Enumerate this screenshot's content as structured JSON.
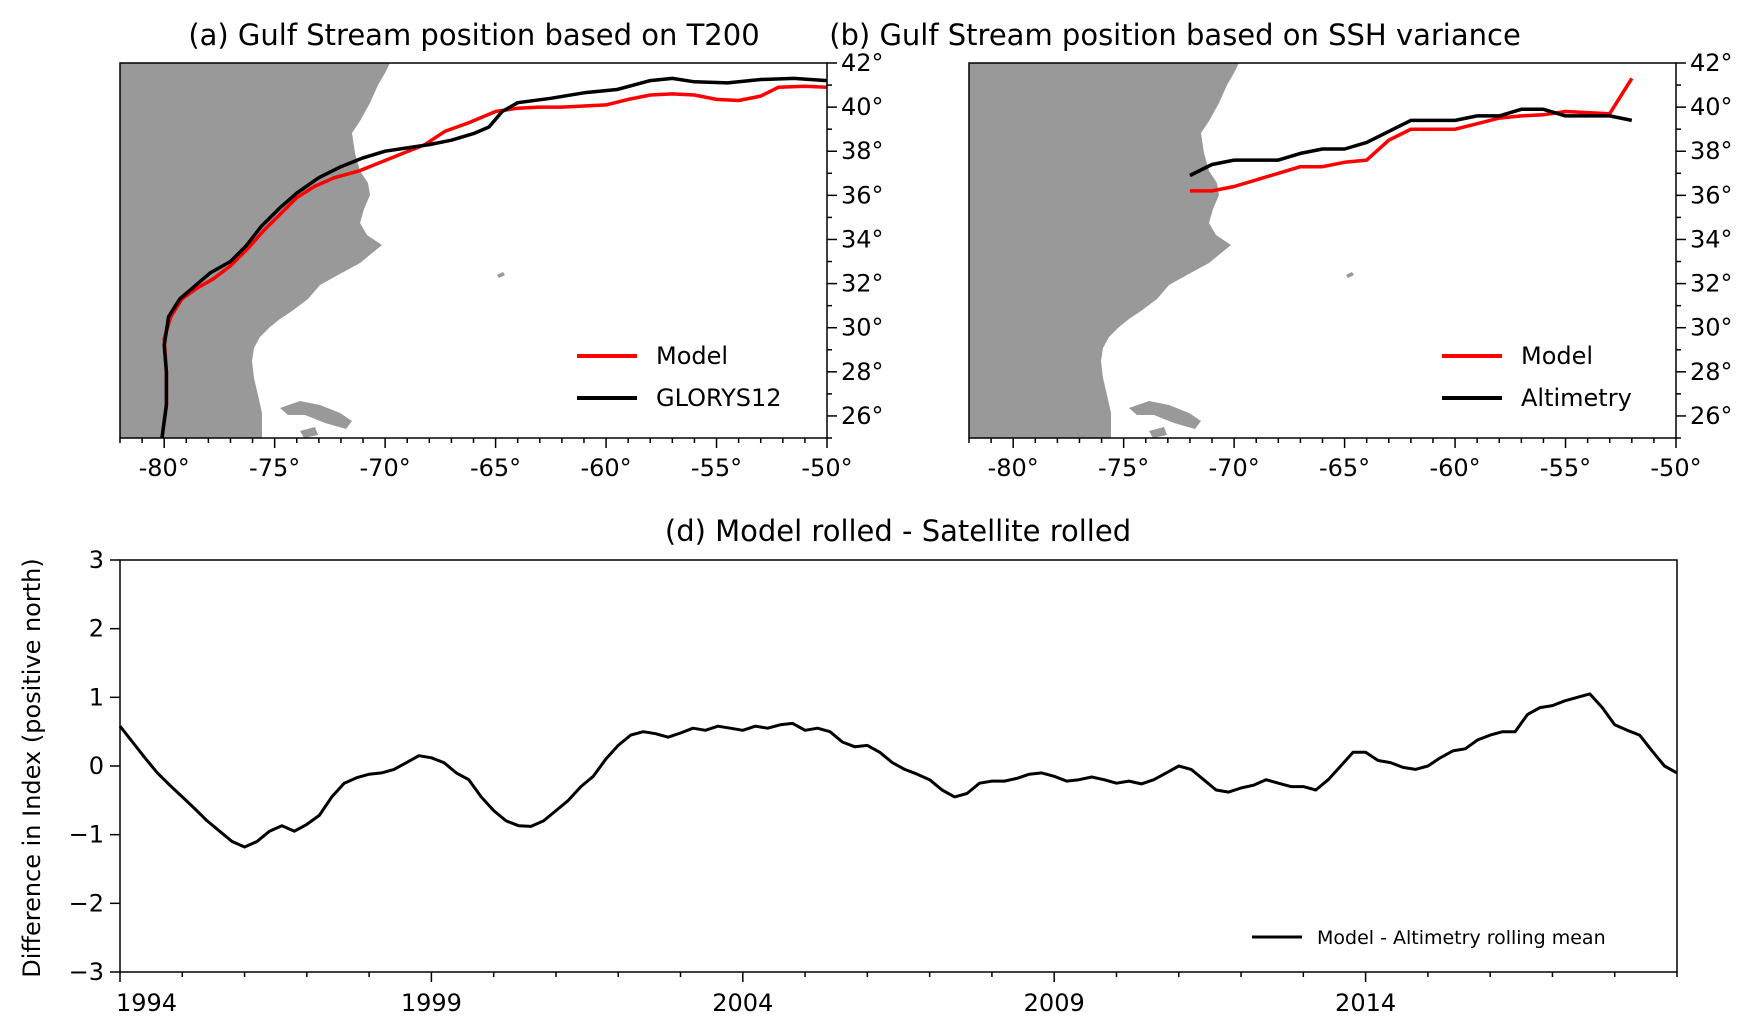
{
  "colors": {
    "model": "#ff0000",
    "reference": "#000000",
    "land": "#999999"
  },
  "chart_data": [
    {
      "type": "line",
      "title": "(a) Gulf Stream position based on T200",
      "xlim": [
        -82,
        -50
      ],
      "ylim": [
        25,
        42
      ],
      "x_ticks": [
        -80,
        -75,
        -70,
        -65,
        -60,
        -55,
        -50
      ],
      "x_tick_labels": [
        "-80°",
        "-75°",
        "-70°",
        "-65°",
        "-60°",
        "-55°",
        "-50°"
      ],
      "y_ticks": [
        26,
        28,
        30,
        32,
        34,
        36,
        38,
        40,
        42
      ],
      "y_tick_labels": [
        "26°",
        "28°",
        "30°",
        "32°",
        "34°",
        "36°",
        "38°",
        "40°",
        "42°"
      ],
      "legend_position": "lower-right",
      "series": [
        {
          "name": "Model",
          "color": "#ff0000",
          "points": [
            [
              -80.1,
              25.0
            ],
            [
              -79.9,
              26.5
            ],
            [
              -79.9,
              28.0
            ],
            [
              -80.0,
              29.5
            ],
            [
              -79.7,
              30.5
            ],
            [
              -79.2,
              31.3
            ],
            [
              -78.5,
              31.8
            ],
            [
              -77.8,
              32.2
            ],
            [
              -77.0,
              32.8
            ],
            [
              -76.2,
              33.6
            ],
            [
              -75.5,
              34.4
            ],
            [
              -74.8,
              35.1
            ],
            [
              -74.0,
              35.9
            ],
            [
              -73.2,
              36.4
            ],
            [
              -72.3,
              36.8
            ],
            [
              -71.2,
              37.1
            ],
            [
              -70.2,
              37.5
            ],
            [
              -69.2,
              37.9
            ],
            [
              -68.2,
              38.3
            ],
            [
              -67.3,
              38.9
            ],
            [
              -66.2,
              39.3
            ],
            [
              -65.0,
              39.8
            ],
            [
              -64.0,
              39.95
            ],
            [
              -63.0,
              40.0
            ],
            [
              -62.0,
              40.0
            ],
            [
              -61.0,
              40.05
            ],
            [
              -60.0,
              40.1
            ],
            [
              -59.0,
              40.35
            ],
            [
              -58.0,
              40.55
            ],
            [
              -57.0,
              40.6
            ],
            [
              -56.0,
              40.55
            ],
            [
              -55.0,
              40.35
            ],
            [
              -54.0,
              40.3
            ],
            [
              -53.0,
              40.5
            ],
            [
              -52.2,
              40.9
            ],
            [
              -51.0,
              40.95
            ],
            [
              -50.0,
              40.9
            ]
          ]
        },
        {
          "name": "GLORYS12",
          "color": "#000000",
          "points": [
            [
              -80.1,
              25.0
            ],
            [
              -79.9,
              26.5
            ],
            [
              -79.9,
              28.0
            ],
            [
              -80.0,
              29.2
            ],
            [
              -79.8,
              30.5
            ],
            [
              -79.3,
              31.3
            ],
            [
              -78.6,
              31.9
            ],
            [
              -77.9,
              32.5
            ],
            [
              -77.0,
              33.0
            ],
            [
              -76.3,
              33.7
            ],
            [
              -75.6,
              34.6
            ],
            [
              -74.8,
              35.4
            ],
            [
              -74.0,
              36.1
            ],
            [
              -73.0,
              36.8
            ],
            [
              -72.0,
              37.3
            ],
            [
              -71.0,
              37.7
            ],
            [
              -70.0,
              38.0
            ],
            [
              -69.0,
              38.15
            ],
            [
              -68.0,
              38.3
            ],
            [
              -67.0,
              38.5
            ],
            [
              -66.0,
              38.8
            ],
            [
              -65.3,
              39.1
            ],
            [
              -64.7,
              39.8
            ],
            [
              -64.0,
              40.2
            ],
            [
              -62.5,
              40.4
            ],
            [
              -61.0,
              40.65
            ],
            [
              -59.5,
              40.8
            ],
            [
              -58.0,
              41.2
            ],
            [
              -57.0,
              41.3
            ],
            [
              -56.0,
              41.15
            ],
            [
              -54.5,
              41.1
            ],
            [
              -53.0,
              41.25
            ],
            [
              -51.5,
              41.3
            ],
            [
              -50.0,
              41.2
            ]
          ]
        }
      ]
    },
    {
      "type": "line",
      "title": "(b) Gulf Stream position based on SSH variance",
      "xlim": [
        -82,
        -50
      ],
      "ylim": [
        25,
        42
      ],
      "x_ticks": [
        -80,
        -75,
        -70,
        -65,
        -60,
        -55,
        -50
      ],
      "x_tick_labels": [
        "-80°",
        "-75°",
        "-70°",
        "-65°",
        "-60°",
        "-55°",
        "-50°"
      ],
      "y_ticks": [
        26,
        28,
        30,
        32,
        34,
        36,
        38,
        40,
        42
      ],
      "y_tick_labels": [
        "26°",
        "28°",
        "30°",
        "32°",
        "34°",
        "36°",
        "38°",
        "40°",
        "42°"
      ],
      "legend_position": "lower-right",
      "series": [
        {
          "name": "Model",
          "color": "#ff0000",
          "points": [
            [
              -72,
              36.2
            ],
            [
              -71,
              36.2
            ],
            [
              -70,
              36.4
            ],
            [
              -69,
              36.7
            ],
            [
              -68,
              37.0
            ],
            [
              -67,
              37.3
            ],
            [
              -66,
              37.3
            ],
            [
              -65,
              37.5
            ],
            [
              -64,
              37.6
            ],
            [
              -63,
              38.5
            ],
            [
              -62,
              39.0
            ],
            [
              -61,
              39.0
            ],
            [
              -60,
              39.0
            ],
            [
              -59,
              39.25
            ],
            [
              -58,
              39.5
            ],
            [
              -57,
              39.6
            ],
            [
              -56,
              39.65
            ],
            [
              -55,
              39.8
            ],
            [
              -54,
              39.75
            ],
            [
              -53,
              39.7
            ],
            [
              -52,
              41.3
            ]
          ]
        },
        {
          "name": "Altimetry",
          "color": "#000000",
          "points": [
            [
              -72,
              36.9
            ],
            [
              -71,
              37.4
            ],
            [
              -70,
              37.6
            ],
            [
              -69,
              37.6
            ],
            [
              -68,
              37.6
            ],
            [
              -67,
              37.9
            ],
            [
              -66,
              38.1
            ],
            [
              -65,
              38.1
            ],
            [
              -64,
              38.4
            ],
            [
              -63,
              38.9
            ],
            [
              -62,
              39.4
            ],
            [
              -61,
              39.4
            ],
            [
              -60,
              39.4
            ],
            [
              -59,
              39.6
            ],
            [
              -58,
              39.6
            ],
            [
              -57,
              39.9
            ],
            [
              -56,
              39.9
            ],
            [
              -55,
              39.6
            ],
            [
              -54,
              39.6
            ],
            [
              -53,
              39.6
            ],
            [
              -52,
              39.4
            ]
          ]
        }
      ]
    },
    {
      "type": "line",
      "title": "(d) Model rolled - Satellite rolled",
      "xlabel": "",
      "ylabel": "Difference in Index (positive north)",
      "xlim": [
        1994,
        2019
      ],
      "ylim": [
        -3,
        3
      ],
      "x_ticks": [
        1994,
        1999,
        2004,
        2009,
        2014
      ],
      "x_tick_labels": [
        "1994",
        "1999",
        "2004",
        "2009",
        "2014"
      ],
      "y_ticks": [
        -3,
        -2,
        -1,
        0,
        1,
        2,
        3
      ],
      "y_tick_labels": [
        "−3",
        "−2",
        "−1",
        "0",
        "1",
        "2",
        "3"
      ],
      "legend_position": "lower-right",
      "series": [
        {
          "name": "Model - Altimetry rolling mean",
          "color": "#000000",
          "points": [
            [
              1994.0,
              0.58
            ],
            [
              1994.2,
              0.35
            ],
            [
              1994.4,
              0.12
            ],
            [
              1994.6,
              -0.1
            ],
            [
              1994.8,
              -0.28
            ],
            [
              1995.0,
              -0.45
            ],
            [
              1995.2,
              -0.62
            ],
            [
              1995.4,
              -0.8
            ],
            [
              1995.6,
              -0.95
            ],
            [
              1995.8,
              -1.1
            ],
            [
              1996.0,
              -1.18
            ],
            [
              1996.2,
              -1.1
            ],
            [
              1996.4,
              -0.95
            ],
            [
              1996.6,
              -0.87
            ],
            [
              1996.8,
              -0.95
            ],
            [
              1997.0,
              -0.85
            ],
            [
              1997.2,
              -0.72
            ],
            [
              1997.4,
              -0.45
            ],
            [
              1997.6,
              -0.25
            ],
            [
              1997.8,
              -0.17
            ],
            [
              1998.0,
              -0.12
            ],
            [
              1998.2,
              -0.1
            ],
            [
              1998.4,
              -0.05
            ],
            [
              1998.6,
              0.05
            ],
            [
              1998.8,
              0.15
            ],
            [
              1999.0,
              0.12
            ],
            [
              1999.2,
              0.05
            ],
            [
              1999.4,
              -0.1
            ],
            [
              1999.6,
              -0.2
            ],
            [
              1999.8,
              -0.45
            ],
            [
              2000.0,
              -0.65
            ],
            [
              2000.2,
              -0.8
            ],
            [
              2000.4,
              -0.87
            ],
            [
              2000.6,
              -0.88
            ],
            [
              2000.8,
              -0.8
            ],
            [
              2001.0,
              -0.65
            ],
            [
              2001.2,
              -0.5
            ],
            [
              2001.4,
              -0.3
            ],
            [
              2001.6,
              -0.15
            ],
            [
              2001.8,
              0.1
            ],
            [
              2002.0,
              0.3
            ],
            [
              2002.2,
              0.45
            ],
            [
              2002.4,
              0.5
            ],
            [
              2002.6,
              0.47
            ],
            [
              2002.8,
              0.42
            ],
            [
              2003.0,
              0.48
            ],
            [
              2003.2,
              0.55
            ],
            [
              2003.4,
              0.52
            ],
            [
              2003.6,
              0.58
            ],
            [
              2003.8,
              0.55
            ],
            [
              2004.0,
              0.52
            ],
            [
              2004.2,
              0.58
            ],
            [
              2004.4,
              0.55
            ],
            [
              2004.6,
              0.6
            ],
            [
              2004.8,
              0.62
            ],
            [
              2005.0,
              0.52
            ],
            [
              2005.2,
              0.55
            ],
            [
              2005.4,
              0.5
            ],
            [
              2005.6,
              0.35
            ],
            [
              2005.8,
              0.28
            ],
            [
              2006.0,
              0.3
            ],
            [
              2006.2,
              0.2
            ],
            [
              2006.4,
              0.05
            ],
            [
              2006.6,
              -0.05
            ],
            [
              2006.8,
              -0.12
            ],
            [
              2007.0,
              -0.2
            ],
            [
              2007.2,
              -0.35
            ],
            [
              2007.4,
              -0.45
            ],
            [
              2007.6,
              -0.4
            ],
            [
              2007.8,
              -0.25
            ],
            [
              2008.0,
              -0.22
            ],
            [
              2008.2,
              -0.22
            ],
            [
              2008.4,
              -0.18
            ],
            [
              2008.6,
              -0.12
            ],
            [
              2008.8,
              -0.1
            ],
            [
              2009.0,
              -0.15
            ],
            [
              2009.2,
              -0.22
            ],
            [
              2009.4,
              -0.2
            ],
            [
              2009.6,
              -0.16
            ],
            [
              2009.8,
              -0.2
            ],
            [
              2010.0,
              -0.25
            ],
            [
              2010.2,
              -0.22
            ],
            [
              2010.4,
              -0.26
            ],
            [
              2010.6,
              -0.2
            ],
            [
              2010.8,
              -0.1
            ],
            [
              2011.0,
              0.0
            ],
            [
              2011.2,
              -0.05
            ],
            [
              2011.4,
              -0.2
            ],
            [
              2011.6,
              -0.35
            ],
            [
              2011.8,
              -0.38
            ],
            [
              2012.0,
              -0.32
            ],
            [
              2012.2,
              -0.28
            ],
            [
              2012.4,
              -0.2
            ],
            [
              2012.6,
              -0.25
            ],
            [
              2012.8,
              -0.3
            ],
            [
              2013.0,
              -0.3
            ],
            [
              2013.2,
              -0.35
            ],
            [
              2013.4,
              -0.2
            ],
            [
              2013.6,
              0.0
            ],
            [
              2013.8,
              0.2
            ],
            [
              2014.0,
              0.2
            ],
            [
              2014.2,
              0.08
            ],
            [
              2014.4,
              0.05
            ],
            [
              2014.6,
              -0.02
            ],
            [
              2014.8,
              -0.05
            ],
            [
              2015.0,
              0.0
            ],
            [
              2015.2,
              0.12
            ],
            [
              2015.4,
              0.22
            ],
            [
              2015.6,
              0.25
            ],
            [
              2015.8,
              0.38
            ],
            [
              2016.0,
              0.45
            ],
            [
              2016.2,
              0.5
            ],
            [
              2016.4,
              0.5
            ],
            [
              2016.6,
              0.75
            ],
            [
              2016.8,
              0.85
            ],
            [
              2017.0,
              0.88
            ],
            [
              2017.2,
              0.95
            ],
            [
              2017.4,
              1.0
            ],
            [
              2017.6,
              1.05
            ],
            [
              2017.8,
              0.85
            ],
            [
              2018.0,
              0.6
            ],
            [
              2018.2,
              0.52
            ],
            [
              2018.4,
              0.45
            ],
            [
              2018.6,
              0.22
            ],
            [
              2018.8,
              0.0
            ],
            [
              2019.0,
              -0.1
            ]
          ]
        }
      ]
    }
  ]
}
